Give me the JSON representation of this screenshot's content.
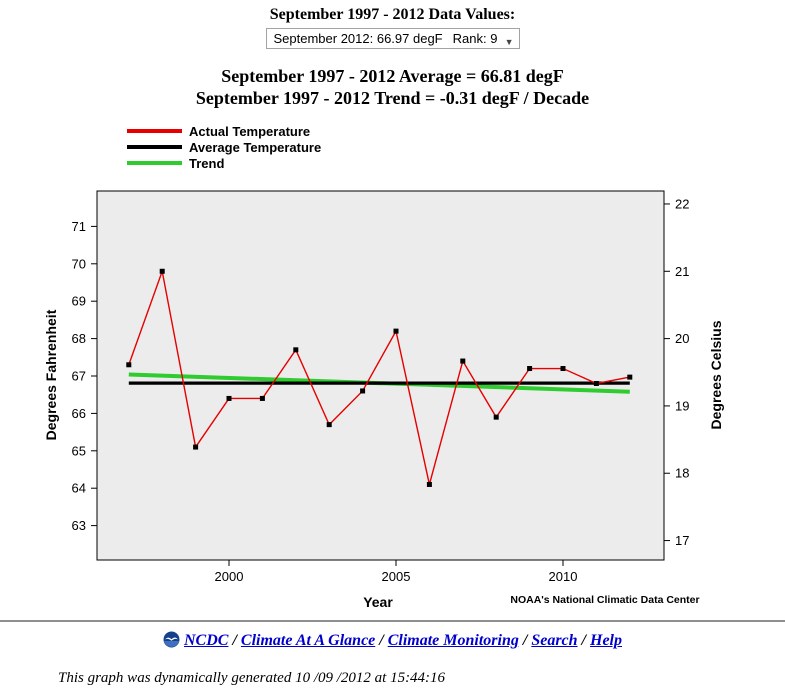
{
  "header": {
    "title": "September 1997 - 2012 Data Values:",
    "dropdown": {
      "value": "September 2012: 66.97 degF",
      "rank": "Rank: 9",
      "arrow_icon": "▼"
    },
    "average_text": "September 1997 - 2012 Average = 66.81 degF",
    "trend_text": "September 1997 - 2012 Trend = -0.31 degF / Decade"
  },
  "legend": {
    "items": [
      {
        "label": "Actual Temperature",
        "color": "#e60000"
      },
      {
        "label": "Average Temperature",
        "color": "#000000"
      },
      {
        "label": "Trend",
        "color": "#2ecc2e"
      }
    ]
  },
  "chart_data": {
    "type": "line",
    "title": "",
    "xlabel": "Year",
    "ylabel_left": "Degrees Fahrenheit",
    "ylabel_right": "Degrees Celsius",
    "attribution": "NOAA's National Climatic Data Center",
    "plot_background": "#ececec",
    "grid": false,
    "legend_position": "top-left-outside",
    "x": [
      1997,
      1998,
      1999,
      2000,
      2001,
      2002,
      2003,
      2004,
      2005,
      2006,
      2007,
      2008,
      2009,
      2010,
      2011,
      2012
    ],
    "series": [
      {
        "name": "Actual Temperature",
        "kind": "line-markers",
        "color": "#e60000",
        "values": [
          67.3,
          69.8,
          65.1,
          66.4,
          66.4,
          67.7,
          65.7,
          66.6,
          68.2,
          64.1,
          67.4,
          65.9,
          67.2,
          67.2,
          66.8,
          66.97
        ]
      },
      {
        "name": "Average Temperature",
        "kind": "hline",
        "color": "#000000",
        "value": 66.81
      },
      {
        "name": "Trend",
        "kind": "trendline",
        "color": "#2ecc2e",
        "start_value": 67.04,
        "end_value": 66.58,
        "slope_per_decade": -0.31
      }
    ],
    "x_ticks": [
      2000,
      2005,
      2010
    ],
    "y_ticks_fahrenheit": [
      63,
      64,
      65,
      66,
      67,
      68,
      69,
      70,
      71
    ],
    "y_ticks_celsius": [
      17,
      18,
      19,
      20,
      21,
      22
    ],
    "ylim_fahrenheit": [
      62.1,
      72.0
    ],
    "xlim": [
      1996.1,
      2013.0
    ]
  },
  "footer": {
    "links": [
      "NCDC",
      "Climate At A Glance",
      "Climate Monitoring",
      "Search",
      "Help"
    ],
    "separator": "/",
    "generated_note": "This graph was dynamically generated 10 /09 /2012 at 15:44:16"
  }
}
